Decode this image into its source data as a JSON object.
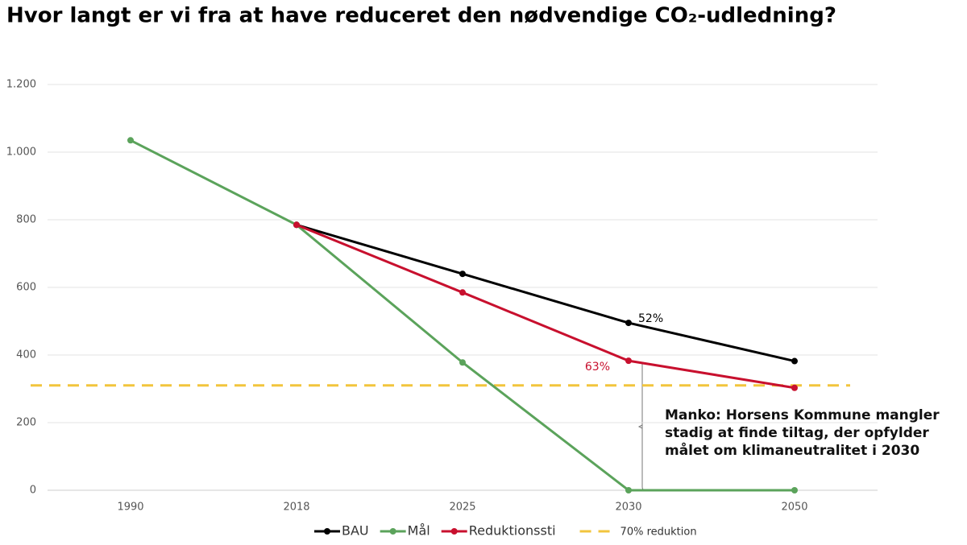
{
  "chart_data": {
    "type": "line",
    "title": "Hvor langt er vi fra at have reduceret den nødvendige CO₂-udledning?",
    "categories": [
      "1990",
      "2018",
      "2025",
      "2030",
      "2050"
    ],
    "series": [
      {
        "name": "BAU",
        "color": "#000000",
        "values": [
          null,
          785,
          640,
          495,
          382
        ]
      },
      {
        "name": "Mål",
        "color": "#5ba35b",
        "values": [
          1035,
          785,
          378,
          0,
          0
        ]
      },
      {
        "name": "Reduktionssti",
        "color": "#c8102e",
        "values": [
          null,
          785,
          585,
          383,
          303
        ]
      }
    ],
    "reference_line": {
      "name": "70% reduktion",
      "value": 310,
      "color": "#f2c53d",
      "dashed": true
    },
    "ylim": [
      0,
      1200
    ],
    "yticks": [
      0,
      200,
      400,
      600,
      800,
      {
        "value": 1000,
        "label": "1.000"
      },
      {
        "value": 1200,
        "label": "1.200"
      }
    ],
    "grid": true,
    "legend": "bottom",
    "annotations": [
      "52%",
      "63%",
      "Manko: Horsens Kommune mangler stadig at finde tiltag, der opfylder målet om klimaneutralitet i 2030"
    ]
  }
}
